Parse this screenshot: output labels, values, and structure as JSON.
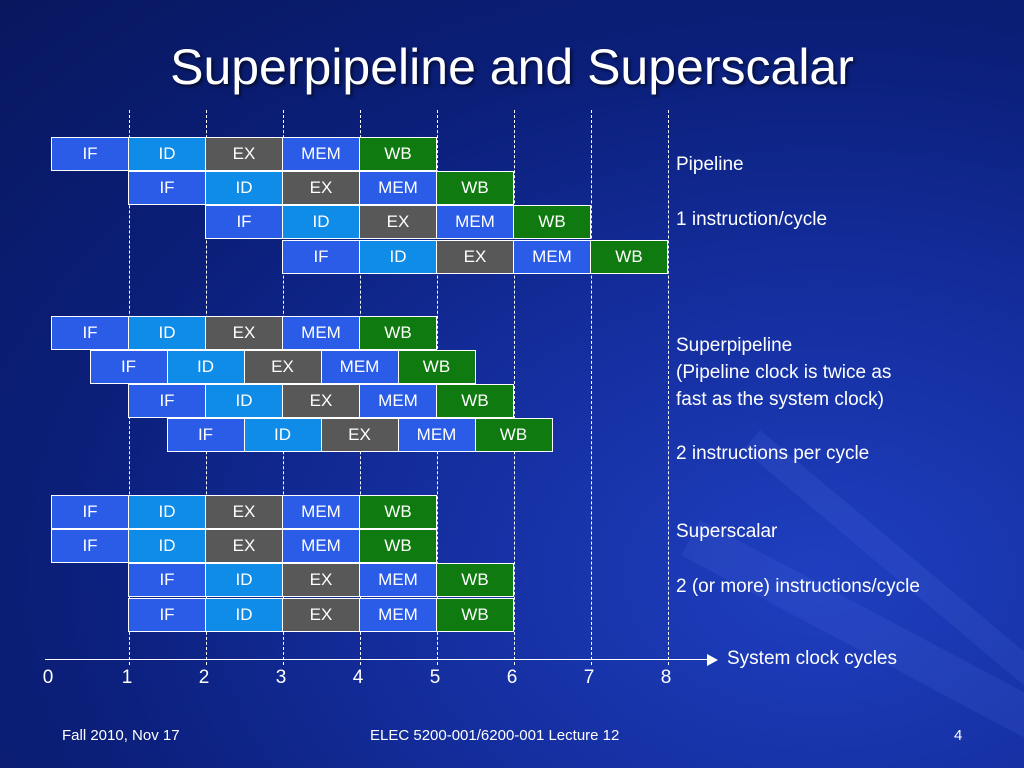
{
  "title": "Superpipeline and Superscalar",
  "stage_names": [
    "IF",
    "ID",
    "EX",
    "MEM",
    "WB"
  ],
  "colors": {
    "IF": "#2b5ce8",
    "ID": "#0f8ce8",
    "EX": "#585858",
    "MEM": "#2b5ce8",
    "WB": "#0f7a0f"
  },
  "pipeline_rows": [
    {
      "group": "pipeline",
      "start": 0,
      "stage_len": 1
    },
    {
      "group": "pipeline",
      "start": 1,
      "stage_len": 1
    },
    {
      "group": "pipeline",
      "start": 2,
      "stage_len": 1
    },
    {
      "group": "pipeline",
      "start": 3,
      "stage_len": 1
    },
    {
      "group": "superpipeline",
      "start": 0,
      "stage_len": 1
    },
    {
      "group": "superpipeline",
      "start": 0.5,
      "stage_len": 1
    },
    {
      "group": "superpipeline",
      "start": 1,
      "stage_len": 1
    },
    {
      "group": "superpipeline",
      "start": 1.5,
      "stage_len": 1
    },
    {
      "group": "superscalar",
      "start": 0,
      "stage_len": 1
    },
    {
      "group": "superscalar",
      "start": 0,
      "stage_len": 1
    },
    {
      "group": "superscalar",
      "start": 1,
      "stage_len": 1
    },
    {
      "group": "superscalar",
      "start": 1,
      "stage_len": 1
    }
  ],
  "labels": {
    "pipeline_name": "Pipeline",
    "pipeline_rate": "1 instruction/cycle",
    "superpipeline_name": "Superpipeline",
    "superpipeline_note1": "(Pipeline clock is twice as",
    "superpipeline_note2": "fast as the system clock)",
    "superpipeline_rate": "2 instructions per cycle",
    "superscalar_name": "Superscalar",
    "superscalar_rate": "2 (or more) instructions/cycle"
  },
  "axis": {
    "ticks": [
      "0",
      "1",
      "2",
      "3",
      "4",
      "5",
      "6",
      "7",
      "8"
    ],
    "label": "System clock cycles"
  },
  "footer": {
    "left": "Fall 2010, Nov 17",
    "center": "ELEC 5200-001/6200-001 Lecture 12",
    "right": "4"
  }
}
